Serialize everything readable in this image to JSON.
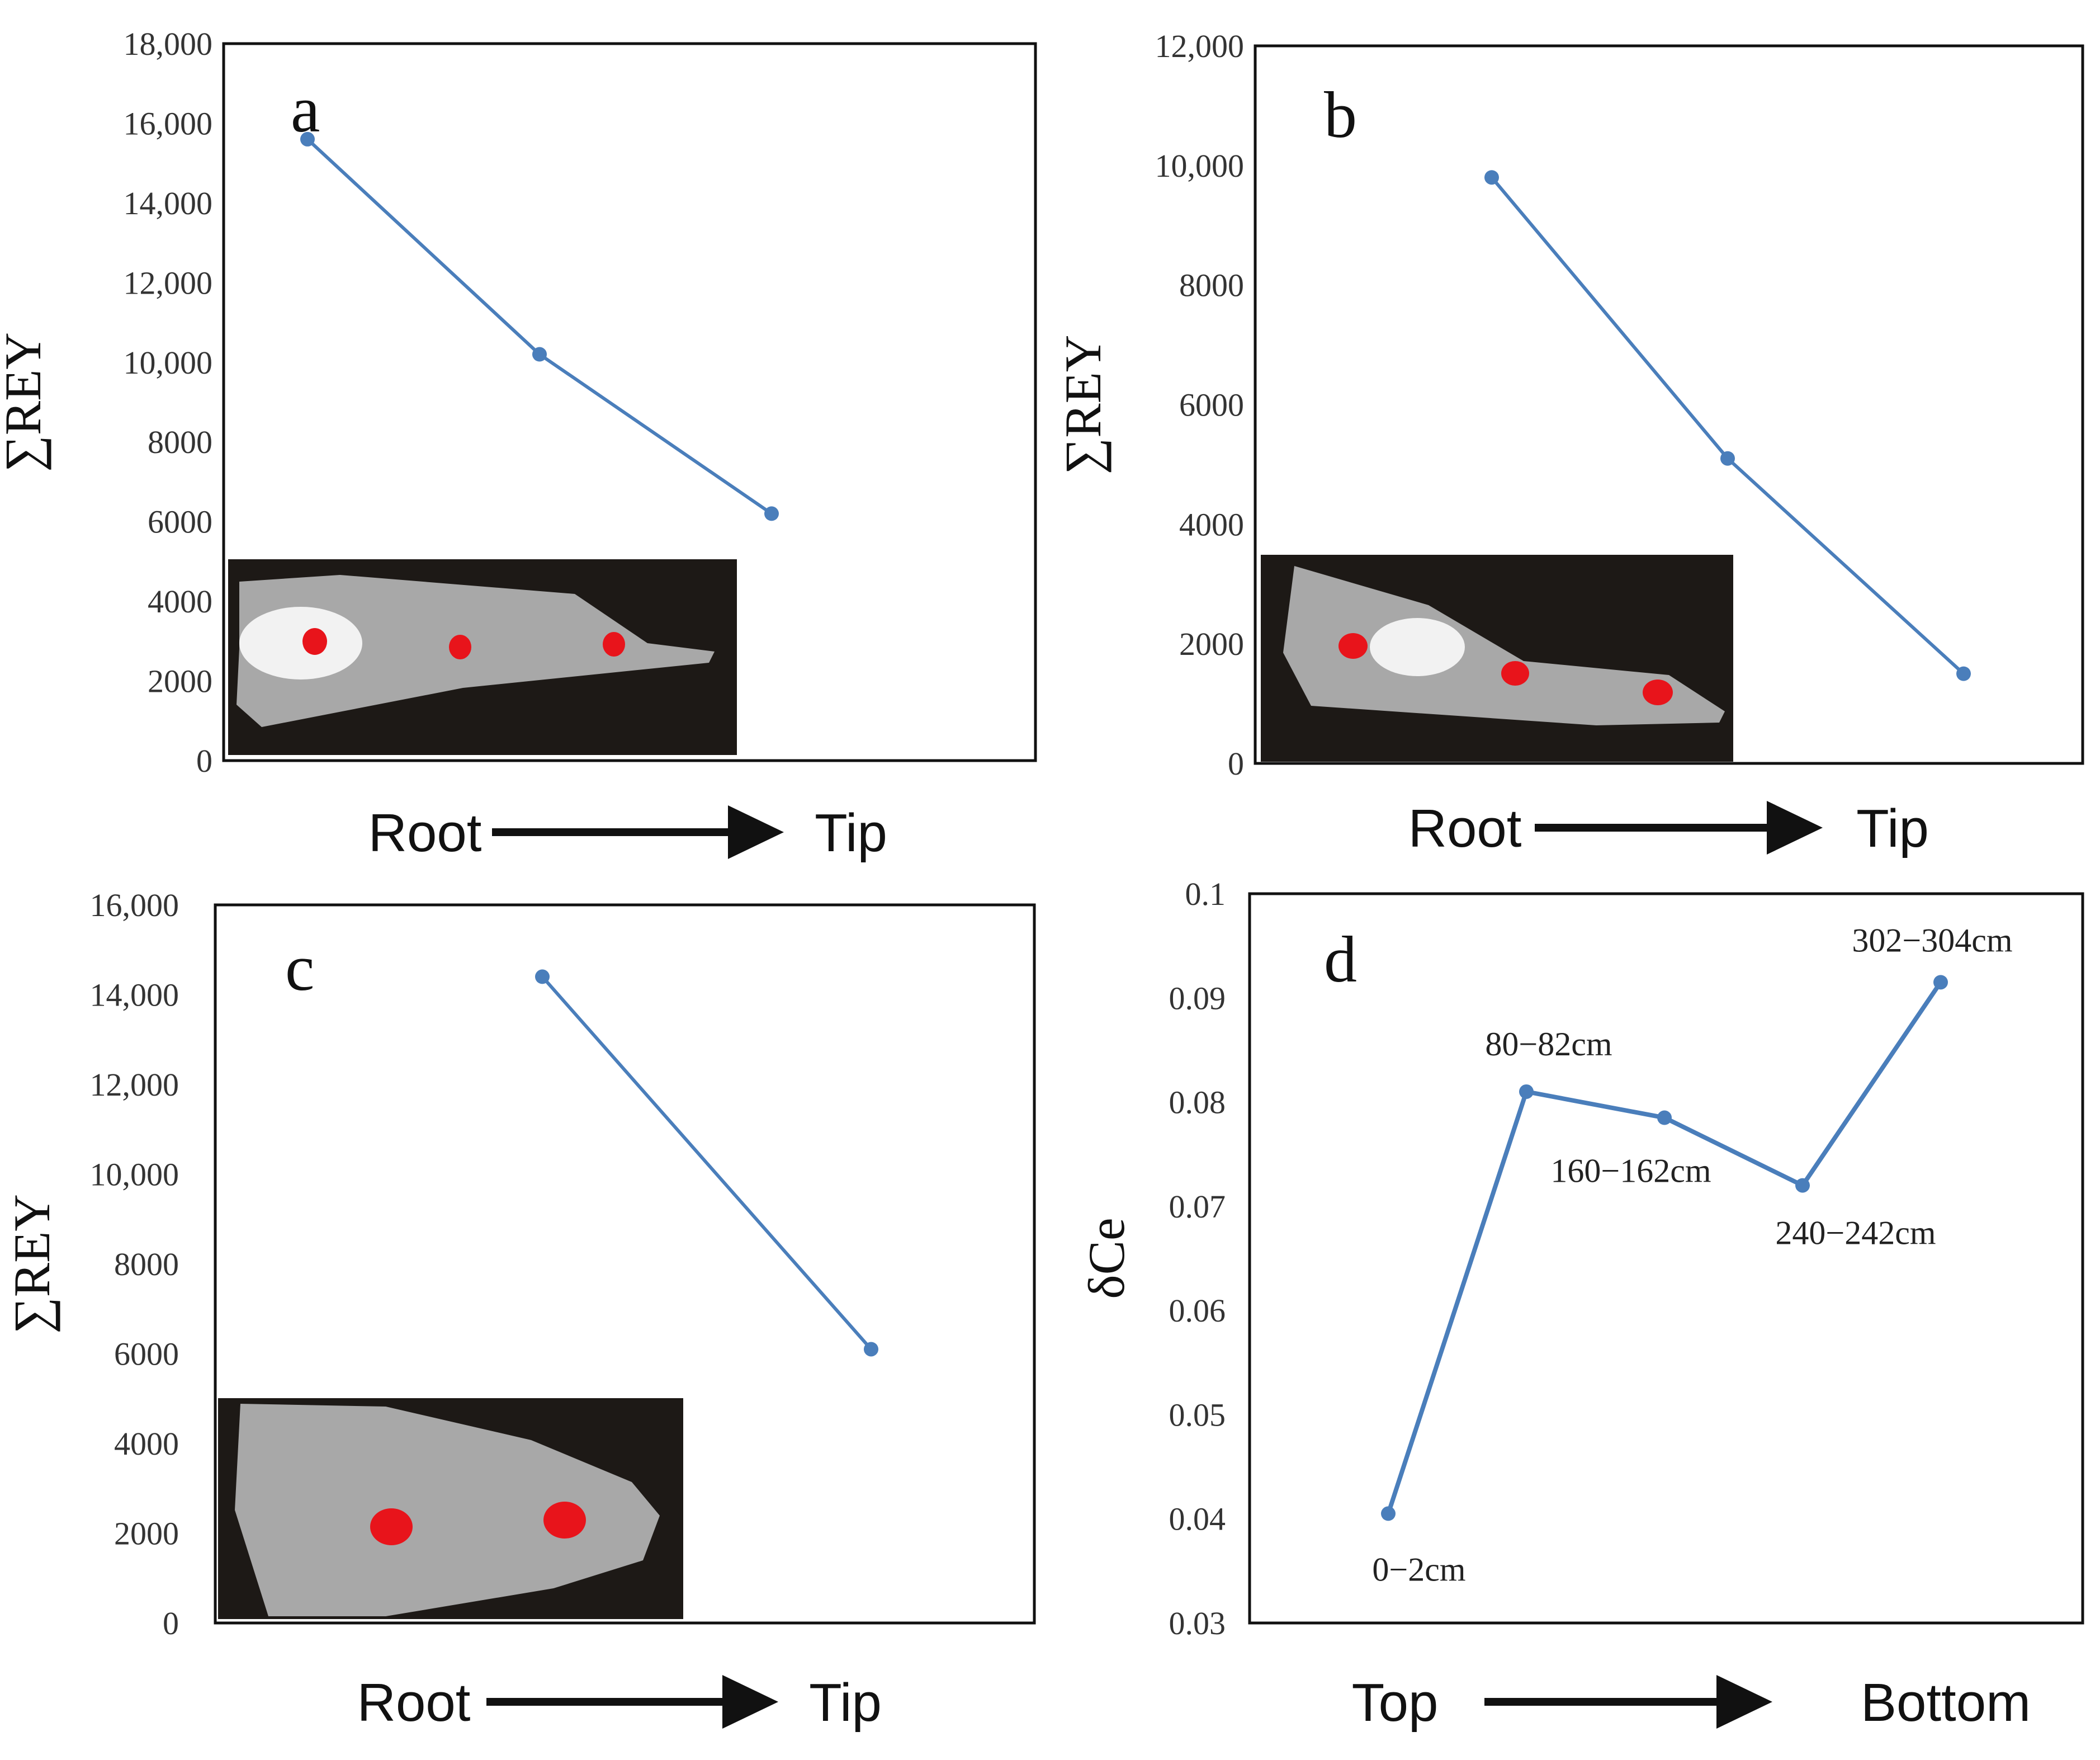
{
  "colors": {
    "line": "#4a7ebb",
    "inset_bg": "#1d1916",
    "marker": "#e8141b",
    "frame": "#111111"
  },
  "chart_data": [
    {
      "type": "line",
      "panel": "a",
      "ylabel": "∑REY",
      "ylim": [
        0,
        18000
      ],
      "yticks": [
        0,
        2000,
        4000,
        6000,
        8000,
        10000,
        12000,
        14000,
        16000,
        18000
      ],
      "ytick_labels": [
        "0",
        "2000",
        "4000",
        "6000",
        "8000",
        "10,000",
        "12,000",
        "14,000",
        "16,000",
        "18,000"
      ],
      "x": [
        1,
        2,
        3
      ],
      "values": [
        15600,
        10200,
        6200
      ],
      "xlabel_start": "Root",
      "xlabel_end": "Tip",
      "inset": {
        "samples": 3
      }
    },
    {
      "type": "line",
      "panel": "b",
      "ylabel": "∑REY",
      "ylim": [
        0,
        12000
      ],
      "yticks": [
        0,
        2000,
        4000,
        6000,
        8000,
        10000,
        12000
      ],
      "ytick_labels": [
        "0",
        "2000",
        "4000",
        "6000",
        "8000",
        "10,000",
        "12,000"
      ],
      "x": [
        1,
        2,
        3
      ],
      "values": [
        9800,
        5100,
        1500
      ],
      "xlabel_start": "Root",
      "xlabel_end": "Tip",
      "inset": {
        "samples": 3
      }
    },
    {
      "type": "line",
      "panel": "c",
      "ylabel": "∑REY",
      "ylim": [
        0,
        16000
      ],
      "yticks": [
        0,
        2000,
        4000,
        6000,
        8000,
        10000,
        12000,
        14000,
        16000
      ],
      "ytick_labels": [
        "0",
        "2000",
        "4000",
        "6000",
        "8000",
        "10,000",
        "12,000",
        "14,000",
        "16,000"
      ],
      "x": [
        1,
        2
      ],
      "values": [
        14400,
        6100
      ],
      "xlabel_start": "Root",
      "xlabel_end": "Tip",
      "inset": {
        "samples": 2
      }
    },
    {
      "type": "line",
      "panel": "d",
      "ylabel": "δCe",
      "ylim": [
        0.03,
        0.1
      ],
      "yticks": [
        0.03,
        0.04,
        0.05,
        0.06,
        0.07,
        0.08,
        0.09,
        0.1
      ],
      "ytick_labels": [
        "0.03",
        "0.04",
        "0.05",
        "0.06",
        "0.07",
        "0.08",
        "0.09",
        "0.1"
      ],
      "x": [
        1,
        2,
        3,
        4,
        5
      ],
      "values": [
        0.0405,
        0.081,
        0.0785,
        0.072,
        0.0915
      ],
      "point_labels": [
        "0−2cm",
        "80−82cm",
        "160−162cm",
        "240−242cm",
        "302−304cm"
      ],
      "xlabel_start": "Top",
      "xlabel_end": "Bottom"
    }
  ]
}
